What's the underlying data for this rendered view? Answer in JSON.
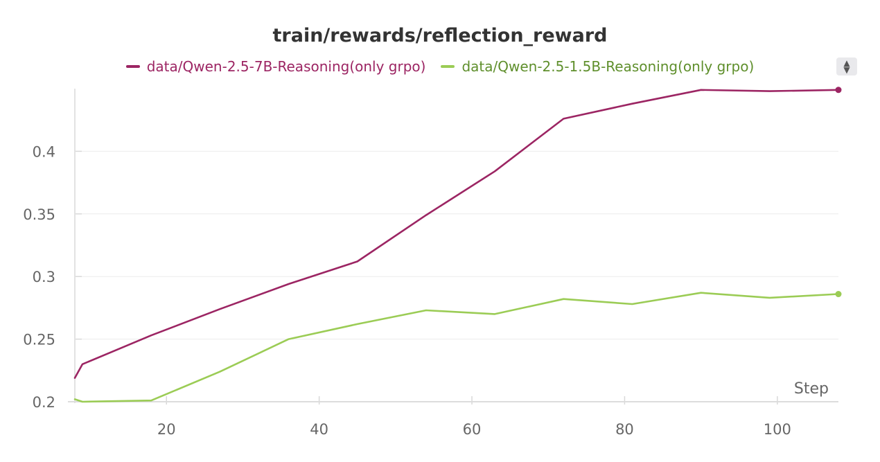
{
  "chart_data": {
    "type": "line",
    "title": "train/rewards/reflection_reward",
    "xlabel": "Step",
    "ylabel": "",
    "xlim": [
      8,
      108
    ],
    "ylim": [
      0.2,
      0.45
    ],
    "xticks": [
      20,
      40,
      60,
      80,
      100
    ],
    "yticks": [
      0.2,
      0.25,
      0.3,
      0.35,
      0.4
    ],
    "xtick_labels": [
      "20",
      "40",
      "60",
      "80",
      "100"
    ],
    "ytick_labels": [
      "0.2",
      "0.25",
      "0.3",
      "0.35",
      "0.4"
    ],
    "grid": true,
    "legend_position": "top-center",
    "series": [
      {
        "name": "data/Qwen-2.5-7B-Reasoning(only grpo)",
        "color": "#9c2563",
        "x": [
          8,
          9,
          18,
          27,
          36,
          45,
          54,
          63,
          72,
          81,
          90,
          99,
          108
        ],
        "y": [
          0.219,
          0.23,
          0.253,
          0.274,
          0.294,
          0.312,
          0.349,
          0.384,
          0.426,
          0.438,
          0.449,
          0.448,
          0.449
        ]
      },
      {
        "name": "data/Qwen-2.5-1.5B-Reasoning(only grpo)",
        "color": "#9bcc55",
        "x": [
          8,
          9,
          18,
          27,
          36,
          45,
          54,
          63,
          72,
          81,
          90,
          99,
          108
        ],
        "y": [
          0.202,
          0.2,
          0.201,
          0.224,
          0.25,
          0.262,
          0.273,
          0.27,
          0.282,
          0.278,
          0.287,
          0.283,
          0.286
        ]
      }
    ]
  },
  "legend_text_colors": [
    "#9c2563",
    "#5f8f2c"
  ]
}
